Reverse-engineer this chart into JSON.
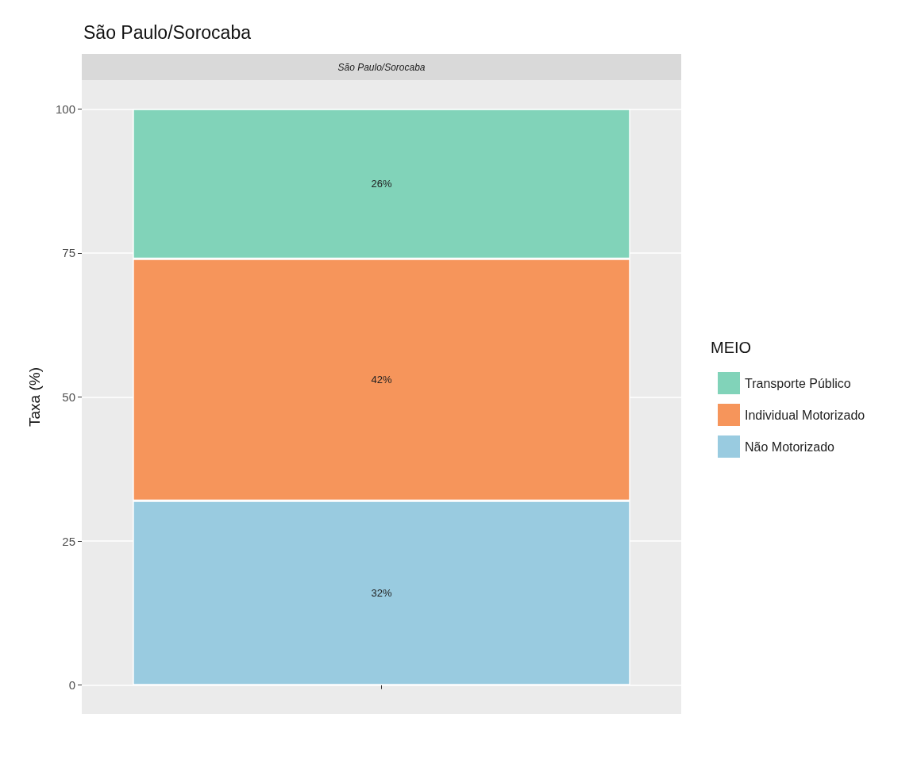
{
  "chart_data": {
    "type": "bar",
    "title": "São Paulo/Sorocaba",
    "subtitle": "São Paulo/Sorocaba",
    "ylabel": "Taxa (%)",
    "legend_title": "MEIO",
    "categories": [
      null
    ],
    "stacked": true,
    "series": [
      {
        "name": "Não Motorizado",
        "color": "#99cbe0",
        "values": [
          32
        ],
        "value_labels": [
          "32%"
        ]
      },
      {
        "name": "Individual Motorizado",
        "color": "#f6955b",
        "values": [
          42
        ],
        "value_labels": [
          "42%"
        ]
      },
      {
        "name": "Transporte Público",
        "color": "#81d3b9",
        "values": [
          26
        ],
        "value_labels": [
          "26%"
        ]
      }
    ],
    "ylim": [
      -5,
      105
    ],
    "yticks": [
      0,
      25,
      50,
      75,
      100
    ],
    "grid": true,
    "legend": "right"
  }
}
